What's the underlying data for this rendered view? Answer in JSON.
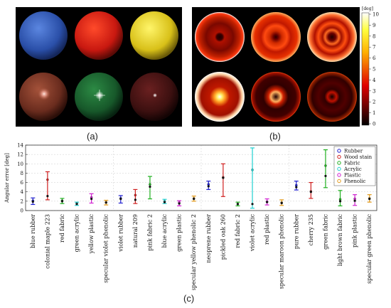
{
  "captions": {
    "a": "(a)",
    "b": "(b)",
    "c": "(c)"
  },
  "panel_a": {
    "spheres": [
      {
        "label": "blue",
        "color": "#3a64c8",
        "highlight": "none"
      },
      {
        "label": "red",
        "color": "#d81e12",
        "highlight": "none"
      },
      {
        "label": "yellow",
        "color": "#e8d21a",
        "highlight": "none"
      },
      {
        "label": "brown",
        "color": "#7a3323",
        "highlight": "pink"
      },
      {
        "label": "green",
        "color": "#1c6a30",
        "highlight": "white"
      },
      {
        "label": "dark-red",
        "color": "#4a1212",
        "highlight": "white-small"
      }
    ]
  },
  "panel_b": {
    "colorbar": {
      "unit": "[deg]",
      "ticks": [
        "10",
        "9",
        "8",
        "7",
        "6",
        "5",
        "4",
        "3",
        "2",
        "1",
        "0"
      ]
    }
  },
  "chart_data": {
    "type": "scatter",
    "title": "",
    "xlabel": "",
    "ylabel": "Angular error [deg]",
    "ylim": [
      0,
      14
    ],
    "yticks": [
      0,
      2,
      4,
      6,
      8,
      10,
      12,
      14
    ],
    "grid": true,
    "legend_position": "top-right",
    "legend": [
      {
        "name": "Rubber",
        "color": "#1f1fd0"
      },
      {
        "name": "Wood stain",
        "color": "#d01f1f"
      },
      {
        "name": "Fabric",
        "color": "#1fb01f"
      },
      {
        "name": "Acrylic",
        "color": "#1fd0d0"
      },
      {
        "name": "Plastic",
        "color": "#d01fd0"
      },
      {
        "name": "Phenolic",
        "color": "#e39a1a"
      }
    ],
    "categories": [
      "blue rubber",
      "colonial maple 223",
      "red fabric",
      "green acrylic",
      "yellow plastic",
      "specular violet phenolic",
      "violet rubber",
      "natural 209",
      "pink fabric 2",
      "blue acrylic",
      "green plastic",
      "specular yellow phenolic 2",
      "neoprene rubber",
      "pickled oak 260",
      "red fabric 2",
      "violet acrylic",
      "red plastic",
      "specular maroon phenolic",
      "pure rubber",
      "cherry 235",
      "green fabric",
      "light brown fabric",
      "pink plastic",
      "specular green phenolic"
    ],
    "points": [
      {
        "material": "Rubber",
        "min": 1.3,
        "max": 2.7,
        "median": 1.9,
        "mean": 2.1
      },
      {
        "material": "Wood stain",
        "min": 2.3,
        "max": 8.3,
        "median": 3.1,
        "mean": 6.6
      },
      {
        "material": "Fabric",
        "min": 1.5,
        "max": 2.6,
        "median": 2.0,
        "mean": 2.1
      },
      {
        "material": "Acrylic",
        "min": 1.1,
        "max": 1.8,
        "median": 1.4,
        "mean": 1.5
      },
      {
        "material": "Plastic",
        "min": 1.6,
        "max": 3.6,
        "median": 2.5,
        "mean": 2.8
      },
      {
        "material": "Phenolic",
        "min": 1.2,
        "max": 2.2,
        "median": 1.7,
        "mean": 1.8
      },
      {
        "material": "Rubber",
        "min": 1.6,
        "max": 3.2,
        "median": 2.5,
        "mean": 2.6
      },
      {
        "material": "Wood stain",
        "min": 1.5,
        "max": 4.5,
        "median": 2.3,
        "mean": 3.3
      },
      {
        "material": "Fabric",
        "min": 2.5,
        "max": 7.3,
        "median": 5.1,
        "mean": 5.6
      },
      {
        "material": "Acrylic",
        "min": 1.5,
        "max": 2.4,
        "median": 1.8,
        "mean": 2.0
      },
      {
        "material": "Plastic",
        "min": 1.0,
        "max": 2.1,
        "median": 1.5,
        "mean": 1.7
      },
      {
        "material": "Phenolic",
        "min": 2.0,
        "max": 3.1,
        "median": 2.5,
        "mean": 2.6
      },
      {
        "material": "Rubber",
        "min": 4.5,
        "max": 6.3,
        "median": 5.2,
        "mean": 5.6
      },
      {
        "material": "Wood stain",
        "min": 3.0,
        "max": 10.0,
        "median": 7.0,
        "mean": 7.1
      },
      {
        "material": "Fabric",
        "min": 1.0,
        "max": 1.8,
        "median": 1.4,
        "mean": 1.4
      },
      {
        "material": "Acrylic",
        "min": 0.5,
        "max": 13.4,
        "median": 1.4,
        "mean": 8.7
      },
      {
        "material": "Plastic",
        "min": 1.2,
        "max": 2.5,
        "median": 1.8,
        "mean": 1.9
      },
      {
        "material": "Phenolic",
        "min": 1.1,
        "max": 2.3,
        "median": 1.6,
        "mean": 1.7
      },
      {
        "material": "Rubber",
        "min": 4.4,
        "max": 6.3,
        "median": 5.0,
        "mean": 5.4
      },
      {
        "material": "Wood stain",
        "min": 2.6,
        "max": 6.0,
        "median": 4.0,
        "mean": 4.1
      },
      {
        "material": "Fabric",
        "min": 4.9,
        "max": 13.0,
        "median": 7.4,
        "mean": 9.6
      },
      {
        "material": "Fabric",
        "min": 1.0,
        "max": 4.3,
        "median": 2.0,
        "mean": 2.4
      },
      {
        "material": "Plastic",
        "min": 1.1,
        "max": 3.4,
        "median": 2.1,
        "mean": 2.5
      },
      {
        "material": "Phenolic",
        "min": 1.8,
        "max": 3.4,
        "median": 2.5,
        "mean": 2.6
      }
    ]
  }
}
